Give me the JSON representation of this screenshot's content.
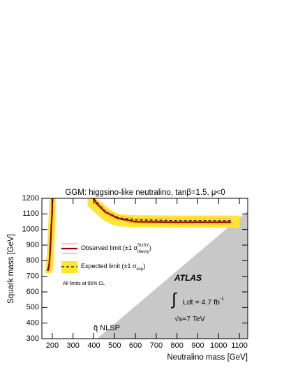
{
  "chart_data": {
    "type": "line",
    "title": "GGM: higgsino-like neutralino, tanβ=1.5,  μ<0",
    "x_label": "Neutralino mass [GeV]",
    "y_label": "Squark mass [GeV]",
    "xlim": [
      150,
      1140
    ],
    "ylim": [
      300,
      1200
    ],
    "xticks": [
      200,
      300,
      400,
      500,
      600,
      700,
      800,
      900,
      1000,
      1100
    ],
    "yticks": [
      300,
      400,
      500,
      600,
      700,
      800,
      900,
      1000,
      1100,
      1200
    ],
    "excluded_region": {
      "color": "#c8c8c8",
      "x": [
        415,
        1140,
        1140
      ],
      "values": [
        300,
        1120,
        300
      ]
    },
    "bands": [
      {
        "color": "#ffe632",
        "x": [
          370,
          400,
          440,
          480,
          520,
          600,
          800,
          1000,
          1100
        ],
        "high": [
          1200,
          1200,
          1170,
          1125,
          1098,
          1092,
          1090,
          1090,
          1090
        ],
        "low": [
          1150,
          1115,
          1065,
          1035,
          1020,
          1015,
          1012,
          1012,
          1012
        ]
      }
    ],
    "vertical_bands": [
      {
        "color": "#ffe632",
        "y": [
          720,
          750,
          800,
          900,
          1000,
          1100,
          1200
        ],
        "xlow": [
          165,
          168,
          171,
          176,
          180,
          183,
          186
        ],
        "xhigh": [
          198,
          202,
          206,
          210,
          213,
          215,
          217
        ]
      }
    ],
    "series": [
      {
        "role": "expected",
        "color": "#000000",
        "dash": "4,3",
        "width": 1.3,
        "x": [
          180,
          186,
          191,
          196,
          200,
          203,
          null,
          400,
          420,
          460,
          520,
          600,
          800,
          1000,
          1060
        ],
        "values": [
          735,
          770,
          870,
          1000,
          1100,
          1200,
          null,
          1200,
          1165,
          1110,
          1075,
          1062,
          1058,
          1058,
          1058
        ]
      },
      {
        "role": "theory-up",
        "color": "#c0392b",
        "dash": "1,2",
        "width": 0.8,
        "x": [
          183,
          189,
          194,
          198,
          201,
          204,
          null,
          405,
          425,
          465,
          525,
          600,
          800,
          1000,
          1060
        ],
        "values": [
          735,
          770,
          870,
          1000,
          1100,
          1200,
          null,
          1200,
          1168,
          1118,
          1085,
          1072,
          1068,
          1068,
          1068
        ]
      },
      {
        "role": "theory-down",
        "color": "#c0392b",
        "dash": "1,2",
        "width": 0.8,
        "x": [
          175,
          181,
          186,
          191,
          195,
          198,
          null,
          390,
          410,
          450,
          510,
          600,
          800,
          1000,
          1060
        ],
        "values": [
          735,
          770,
          870,
          1000,
          1100,
          1200,
          null,
          1200,
          1162,
          1105,
          1062,
          1040,
          1035,
          1035,
          1035
        ]
      },
      {
        "role": "observed",
        "color": "#a00000",
        "dash": "",
        "width": 2.2,
        "x": [
          178,
          185,
          190,
          195,
          199,
          201,
          null,
          397,
          415,
          455,
          515,
          600,
          800,
          1000,
          1060
        ],
        "values": [
          735,
          770,
          870,
          1000,
          1100,
          1200,
          null,
          1200,
          1165,
          1112,
          1072,
          1050,
          1047,
          1047,
          1047
        ]
      }
    ],
    "legend": [
      {
        "text": "Observed limit (±1 σ",
        "sup": "SUSY",
        "sub": "theory",
        "end": ")"
      },
      {
        "text": "Expected limit (±1 σ",
        "sub": "exp",
        "end": ")"
      }
    ],
    "note": "All limits at 95% CL",
    "atlas": "ATLAS",
    "integral": "∫",
    "lumi": "Ldt = 4.7 fb",
    "lumi_sup": "-1",
    "energy": "√s=7 TeV",
    "region_label": "q̃ NLSP"
  }
}
